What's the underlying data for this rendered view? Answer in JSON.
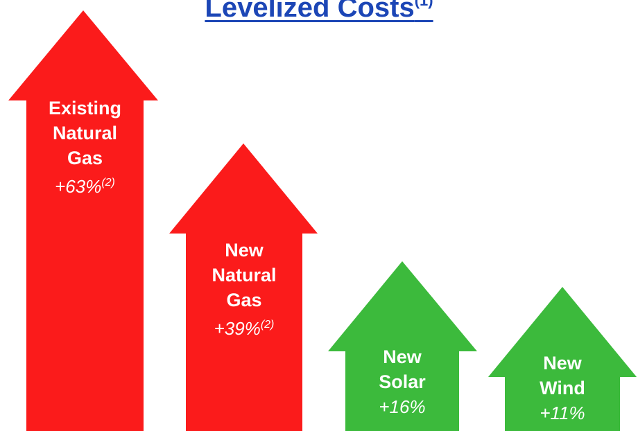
{
  "title": "Levelized Costs",
  "title_note": "(1)",
  "arrows": [
    {
      "label": "Existing Natural Gas",
      "change": "+63%",
      "note": "(2)",
      "color": "#fb1b1b"
    },
    {
      "label": "New Natural Gas",
      "change": "+39%",
      "note": "(2)",
      "color": "#fb1b1b"
    },
    {
      "label": "New Solar",
      "change": "+16%",
      "color": "#3cba3c"
    },
    {
      "label": "New Wind",
      "change": "+11%",
      "color": "#3cba3c"
    }
  ]
}
